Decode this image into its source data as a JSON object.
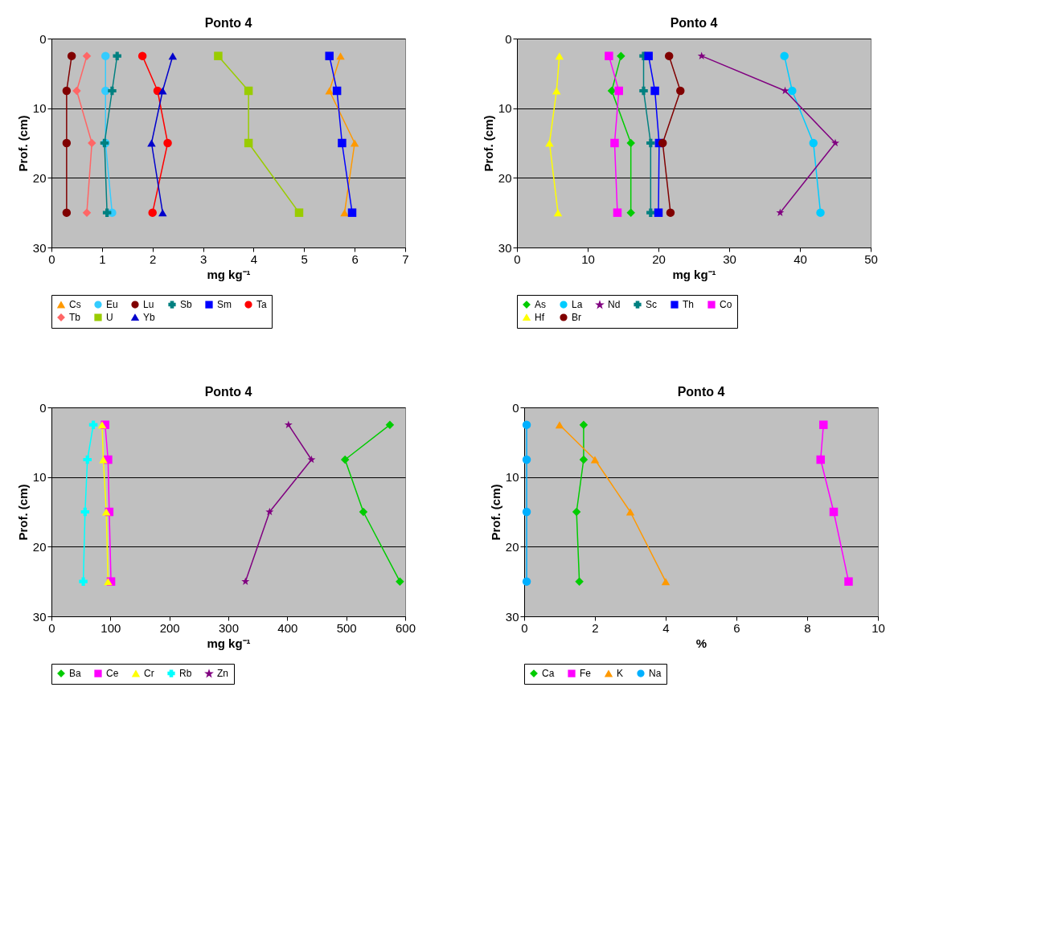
{
  "chart_data": [
    {
      "type": "line",
      "title": "Ponto 4",
      "xlabel": "mg kg⁻¹",
      "ylabel": "Prof. (cm)",
      "xlim": [
        0,
        7
      ],
      "xticks": [
        0,
        1,
        2,
        3,
        4,
        5,
        6,
        7
      ],
      "ylim": [
        30,
        0
      ],
      "yticks": [
        0,
        10,
        20,
        30
      ],
      "grid": "y",
      "legend": "bottom",
      "series": [
        {
          "name": "Cs",
          "color": "#ff9900",
          "marker": "triangle",
          "x": [
            5.72,
            5.5,
            6.0,
            5.8
          ],
          "values": [
            2.5,
            7.5,
            15,
            25
          ]
        },
        {
          "name": "Eu",
          "color": "#33ccff",
          "marker": "circle",
          "x": [
            1.07,
            1.07,
            1.07,
            1.2
          ],
          "values": [
            2.5,
            7.5,
            15,
            25
          ]
        },
        {
          "name": "Lu",
          "color": "#800000",
          "marker": "circle",
          "x": [
            0.4,
            0.3,
            0.3,
            0.3
          ],
          "values": [
            2.5,
            7.5,
            15,
            25
          ]
        },
        {
          "name": "Sb",
          "color": "#008080",
          "marker": "cross",
          "x": [
            1.3,
            1.2,
            1.05,
            1.1
          ],
          "values": [
            2.5,
            7.5,
            15,
            25
          ]
        },
        {
          "name": "Sm",
          "color": "#0000ff",
          "marker": "square",
          "x": [
            5.5,
            5.65,
            5.75,
            5.95
          ],
          "values": [
            2.5,
            7.5,
            15,
            25
          ]
        },
        {
          "name": "Ta",
          "color": "#ff0000",
          "marker": "circle",
          "x": [
            1.8,
            2.1,
            2.3,
            2.0
          ],
          "values": [
            2.5,
            7.5,
            15,
            25
          ]
        },
        {
          "name": "Tb",
          "color": "#ff6666",
          "marker": "diamond",
          "x": [
            0.7,
            0.5,
            0.8,
            0.7
          ],
          "values": [
            2.5,
            7.5,
            15,
            25
          ]
        },
        {
          "name": "U",
          "color": "#99cc00",
          "marker": "square",
          "x": [
            3.3,
            3.9,
            3.9,
            4.9
          ],
          "values": [
            2.5,
            7.5,
            15,
            25
          ]
        },
        {
          "name": "Yb",
          "color": "#0000cc",
          "marker": "triangle",
          "x": [
            2.4,
            2.2,
            1.98,
            2.2
          ],
          "values": [
            2.5,
            7.5,
            15,
            25
          ]
        }
      ]
    },
    {
      "type": "line",
      "title": "Ponto 4",
      "xlabel": "mg kg⁻¹",
      "ylabel": "Prof. (cm)",
      "xlim": [
        0,
        50
      ],
      "xticks": [
        0,
        10,
        20,
        30,
        40,
        50
      ],
      "ylim": [
        30,
        0
      ],
      "yticks": [
        0,
        10,
        20,
        30
      ],
      "grid": "y",
      "legend": "bottom",
      "series": [
        {
          "name": "As",
          "color": "#00cc00",
          "marker": "diamond",
          "x": [
            14.7,
            13.4,
            16.1,
            16.1
          ],
          "values": [
            2.5,
            7.5,
            15,
            25
          ]
        },
        {
          "name": "La",
          "color": "#00ccff",
          "marker": "circle",
          "x": [
            37.8,
            38.9,
            41.9,
            42.9
          ],
          "values": [
            2.5,
            7.5,
            15,
            25
          ]
        },
        {
          "name": "Nd",
          "color": "#800080",
          "marker": "star",
          "x": [
            26.1,
            37.9,
            45.0,
            37.2
          ],
          "values": [
            2.5,
            7.5,
            15,
            25
          ]
        },
        {
          "name": "Sc",
          "color": "#008080",
          "marker": "cross",
          "x": [
            17.9,
            17.9,
            18.9,
            18.9
          ],
          "values": [
            2.5,
            7.5,
            15,
            25
          ]
        },
        {
          "name": "Th",
          "color": "#0000ff",
          "marker": "square",
          "x": [
            18.6,
            19.5,
            20.1,
            20.0
          ],
          "values": [
            2.5,
            7.5,
            15,
            25
          ]
        },
        {
          "name": "Co",
          "color": "#ff00ff",
          "marker": "square",
          "x": [
            13.0,
            14.4,
            13.8,
            14.2
          ],
          "values": [
            2.5,
            7.5,
            15,
            25
          ]
        },
        {
          "name": "Hf",
          "color": "#ffff00",
          "marker": "triangle",
          "x": [
            6.0,
            5.6,
            4.6,
            5.8
          ],
          "values": [
            2.5,
            7.5,
            15,
            25
          ]
        },
        {
          "name": "Br",
          "color": "#800000",
          "marker": "circle",
          "x": [
            21.5,
            23.1,
            20.6,
            21.7
          ],
          "values": [
            2.5,
            7.5,
            15,
            25
          ]
        }
      ]
    },
    {
      "type": "line",
      "title": "Ponto 4",
      "xlabel": "mg kg⁻¹",
      "ylabel": "Prof. (cm)",
      "xlim": [
        0,
        600
      ],
      "xticks": [
        0,
        100,
        200,
        300,
        400,
        500,
        600
      ],
      "ylim": [
        30,
        0
      ],
      "yticks": [
        0,
        10,
        20,
        30
      ],
      "grid": "y",
      "legend": "bottom",
      "series": [
        {
          "name": "Ba",
          "color": "#00cc00",
          "marker": "diamond",
          "x": [
            574,
            498,
            529,
            591
          ],
          "values": [
            2.5,
            7.5,
            15,
            25
          ]
        },
        {
          "name": "Ce",
          "color": "#ff00ff",
          "marker": "square",
          "x": [
            91,
            96,
            98,
            101
          ],
          "values": [
            2.5,
            7.5,
            15,
            25
          ]
        },
        {
          "name": "Cr",
          "color": "#ffff00",
          "marker": "triangle",
          "x": [
            86,
            88,
            93,
            96
          ],
          "values": [
            2.5,
            7.5,
            15,
            25
          ]
        },
        {
          "name": "Rb",
          "color": "#00ffff",
          "marker": "cross",
          "x": [
            71,
            61,
            57,
            54
          ],
          "values": [
            2.5,
            7.5,
            15,
            25
          ]
        },
        {
          "name": "Zn",
          "color": "#800080",
          "marker": "star",
          "x": [
            402,
            441,
            370,
            329
          ],
          "values": [
            2.5,
            7.5,
            15,
            25
          ]
        }
      ]
    },
    {
      "type": "line",
      "title": "Ponto 4",
      "xlabel": "%",
      "ylabel": "Prof. (cm)",
      "xlim": [
        0,
        10
      ],
      "xticks": [
        0,
        2,
        4,
        6,
        8,
        10
      ],
      "ylim": [
        30,
        0
      ],
      "yticks": [
        0,
        10,
        20,
        30
      ],
      "grid": "y",
      "legend": "bottom",
      "series": [
        {
          "name": "Ca",
          "color": "#00cc00",
          "marker": "diamond",
          "x": [
            1.68,
            1.68,
            1.48,
            1.56
          ],
          "values": [
            2.5,
            7.5,
            15,
            25
          ]
        },
        {
          "name": "Fe",
          "color": "#ff00ff",
          "marker": "square",
          "x": [
            8.46,
            8.38,
            8.75,
            9.17
          ],
          "values": [
            2.5,
            7.5,
            15,
            25
          ]
        },
        {
          "name": "K",
          "color": "#ff9900",
          "marker": "triangle",
          "x": [
            1.0,
            2.0,
            3.0,
            4.0
          ],
          "values": [
            2.5,
            7.5,
            15,
            25
          ]
        },
        {
          "name": "Na",
          "color": "#00b0ff",
          "marker": "circle",
          "x": [
            0.07,
            0.07,
            0.07,
            0.07
          ],
          "values": [
            2.5,
            7.5,
            15,
            25
          ]
        }
      ]
    }
  ]
}
